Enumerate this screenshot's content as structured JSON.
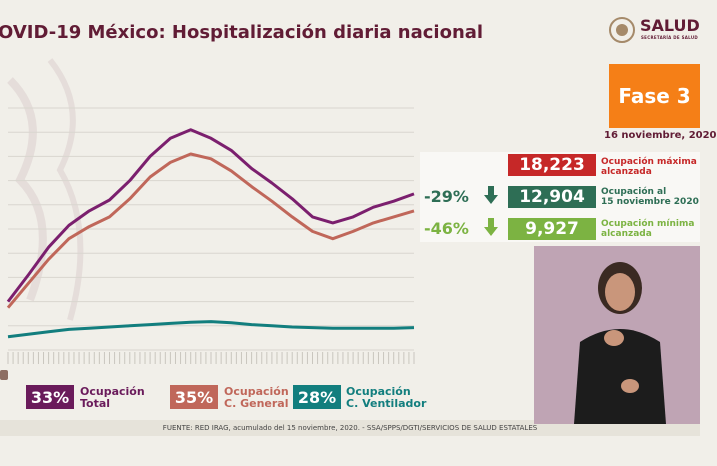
{
  "title": "OVID-19 México: Hospitalización diaria nacional",
  "logo": {
    "name": "SALUD",
    "subtitle": "SECRETARÍA DE SALUD",
    "icon": "coat-of-arms-icon"
  },
  "fase": {
    "label": "Fase 3",
    "date": "16 noviembre, 2020"
  },
  "stats": {
    "max": {
      "value": "18,223",
      "label_1": "Ocupación máxima",
      "label_2": "alcanzada",
      "color": "#c62828"
    },
    "current": {
      "value": "12,904",
      "label_1": "Ocupación al",
      "label_2": "15 noviembre 2020",
      "pct": "-29%",
      "color": "#2e6e55"
    },
    "min": {
      "value": "9,927",
      "label_1": "Ocupación mínima",
      "label_2": "alcanzada",
      "pct": "-46%",
      "color": "#7cb342"
    }
  },
  "legend": [
    {
      "pct": "33%",
      "label_1": "Ocupación",
      "label_2": "Total",
      "color": "#6a1b5b"
    },
    {
      "pct": "35%",
      "label_1": "Ocupación",
      "label_2": "C. General",
      "color": "#c0675a"
    },
    {
      "pct": "28%",
      "label_1": "Ocupación",
      "label_2": "C. Ventilador",
      "color": "#127e7e"
    }
  ],
  "footer": "FUENTE: RED IRAG, acumulado del 15 noviembre, 2020. - SSA/SPPS/DGTI/SERVICIOS DE SALUD ESTATALES",
  "chart_data": {
    "type": "line",
    "title": "",
    "xlabel": "",
    "ylabel": "",
    "grid": true,
    "ylim": [
      0,
      20000
    ],
    "x": [
      0,
      10,
      20,
      30,
      40,
      50,
      60,
      70,
      80,
      90,
      100,
      110,
      120,
      130,
      140,
      150,
      160,
      170,
      180,
      190,
      200
    ],
    "series": [
      {
        "name": "Ocupación Total",
        "color": "#7b1f6e",
        "values": [
          4000,
          6200,
          8500,
          10300,
          11500,
          12400,
          14000,
          16000,
          17500,
          18200,
          17500,
          16500,
          15000,
          13800,
          12500,
          11000,
          10500,
          11000,
          11800,
          12300,
          12900
        ]
      },
      {
        "name": "Ocupación C. General",
        "color": "#c0675a",
        "values": [
          3500,
          5500,
          7500,
          9200,
          10200,
          11000,
          12500,
          14300,
          15500,
          16200,
          15800,
          14800,
          13500,
          12300,
          11000,
          9800,
          9200,
          9800,
          10500,
          11000,
          11500
        ]
      },
      {
        "name": "Ocupación C. Ventilador",
        "color": "#127e7e",
        "values": [
          1100,
          1300,
          1500,
          1700,
          1800,
          1900,
          2000,
          2100,
          2200,
          2300,
          2350,
          2250,
          2100,
          2000,
          1900,
          1850,
          1800,
          1800,
          1800,
          1800,
          1850
        ]
      }
    ]
  }
}
